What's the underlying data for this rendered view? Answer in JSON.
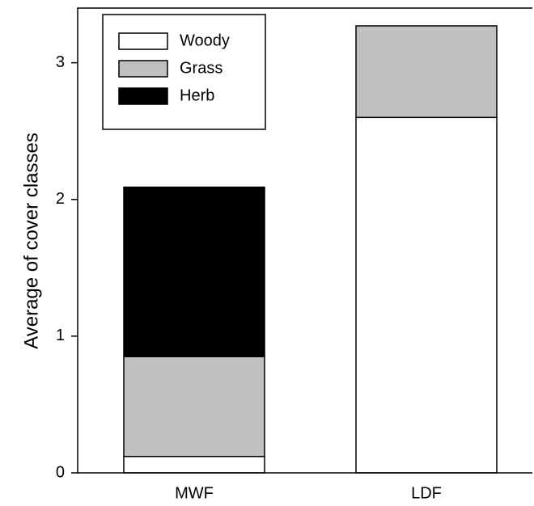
{
  "chart_data": {
    "type": "stacked_bar",
    "ylabel": "Average of cover classes",
    "categories": [
      "MWF",
      "LDF"
    ],
    "series": [
      {
        "name": "Woody",
        "color": "#ffffff",
        "values": [
          0.12,
          2.6
        ]
      },
      {
        "name": "Grass",
        "color": "#c0c0c0",
        "values": [
          0.73,
          0.67
        ]
      },
      {
        "name": "Herb",
        "color": "#000000",
        "values": [
          1.24,
          0
        ]
      }
    ],
    "ylim": [
      0,
      3.4
    ],
    "yticks": [
      0,
      1,
      2,
      3
    ],
    "legend": "upper left"
  }
}
